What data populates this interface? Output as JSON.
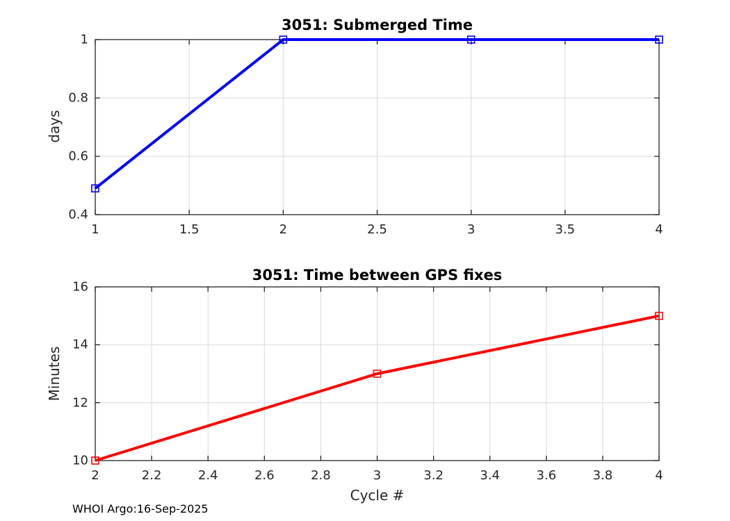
{
  "figure": {
    "background": "#ffffff",
    "footer": "WHOI Argo:16-Sep-2025"
  },
  "style": {
    "grid_color": "#d9d9d9",
    "axis_color": "#222222",
    "tick_label_color": "#262626",
    "title_color": "#000000",
    "line_width": 4
  },
  "chart_data": [
    {
      "type": "line",
      "title": "3051: Submerged Time",
      "xlabel": "",
      "ylabel": "days",
      "xlim": [
        1,
        4
      ],
      "ylim": [
        0.4,
        1
      ],
      "xticks": [
        1,
        1.5,
        2,
        2.5,
        3,
        3.5,
        4
      ],
      "xtick_labels": [
        "1",
        "1.5",
        "2",
        "2.5",
        "3",
        "3.5",
        "4"
      ],
      "yticks": [
        0.4,
        0.6,
        0.8,
        1
      ],
      "ytick_labels": [
        "0.4",
        "0.6",
        "0.8",
        "1"
      ],
      "grid": true,
      "legend": "none",
      "series": [
        {
          "name": "submerged-time",
          "color": "#0000ff",
          "marker": "open-square",
          "x": [
            1,
            2,
            3,
            4
          ],
          "y": [
            0.49,
            1,
            1,
            1
          ]
        }
      ]
    },
    {
      "type": "line",
      "title": "3051: Time between GPS fixes",
      "xlabel": "Cycle #",
      "ylabel": "Minutes",
      "xlim": [
        2,
        4
      ],
      "ylim": [
        10,
        16
      ],
      "xticks": [
        2,
        2.2,
        2.4,
        2.6,
        2.8,
        3,
        3.2,
        3.4,
        3.6,
        3.8,
        4
      ],
      "xtick_labels": [
        "2",
        "2.2",
        "2.4",
        "2.6",
        "2.8",
        "3",
        "3.2",
        "3.4",
        "3.6",
        "3.8",
        "4"
      ],
      "yticks": [
        10,
        12,
        14,
        16
      ],
      "ytick_labels": [
        "10",
        "12",
        "14",
        "16"
      ],
      "grid": true,
      "legend": "none",
      "series": [
        {
          "name": "gps-fix-interval",
          "color": "#ff0000",
          "marker": "open-square",
          "x": [
            2,
            3,
            4
          ],
          "y": [
            10,
            13,
            15
          ]
        }
      ]
    }
  ]
}
